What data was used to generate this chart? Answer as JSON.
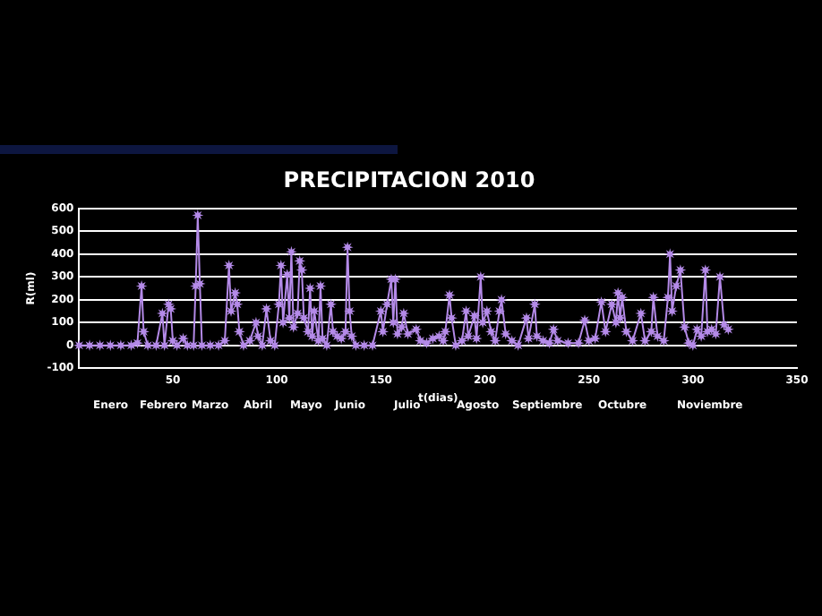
{
  "chart_data": {
    "type": "line",
    "title": "PRECIPITACION 2010",
    "xlabel": "t(dias)",
    "ylabel": "R(ml)",
    "annotations": [
      "Enero",
      "Febrero",
      "Marzo",
      "Abril",
      "Mayo",
      "Junio",
      "Julio",
      "Agosto",
      "Septiembre",
      "Octubre",
      "Noviembre"
    ],
    "xlim": [
      5,
      350
    ],
    "xticks": [
      50,
      100,
      150,
      200,
      250,
      300,
      350
    ],
    "ylim": [
      -100,
      600
    ],
    "yticks": [
      -100,
      0,
      100,
      200,
      300,
      400,
      500,
      600
    ],
    "grid": "y",
    "legend": false,
    "marker": "star",
    "line_style": "solid",
    "series": [
      {
        "color": "#b48ae8",
        "x": [
          5,
          10,
          15,
          20,
          25,
          30,
          33,
          35,
          36,
          38,
          42,
          45,
          46,
          48,
          49,
          50,
          52,
          55,
          57,
          60,
          61,
          62,
          63,
          64,
          68,
          72,
          75,
          77,
          78,
          80,
          81,
          82,
          84,
          87,
          90,
          91,
          93,
          95,
          97,
          99,
          101,
          102,
          103,
          105,
          106,
          107,
          108,
          110,
          111,
          112,
          113,
          115,
          116,
          117,
          118,
          120,
          121,
          122,
          124,
          126,
          127,
          129,
          131,
          133,
          134,
          135,
          136,
          138,
          142,
          146,
          150,
          151,
          153,
          155,
          156,
          157,
          158,
          160,
          161,
          163,
          167,
          169,
          172,
          175,
          178,
          180,
          181,
          183,
          184,
          186,
          189,
          191,
          192,
          195,
          196,
          198,
          199,
          201,
          203,
          205,
          207,
          208,
          210,
          213,
          216,
          220,
          221,
          224,
          225,
          228,
          231,
          233,
          235,
          240,
          245,
          248,
          250,
          253,
          256,
          258,
          261,
          263,
          264,
          265,
          266,
          268,
          271,
          275,
          277,
          280,
          281,
          283,
          286,
          288,
          289,
          290,
          292,
          294,
          296,
          298,
          300,
          302,
          304,
          306,
          307,
          309,
          311,
          313,
          315,
          317
        ],
        "values": [
          0,
          0,
          0,
          0,
          0,
          0,
          10,
          260,
          60,
          0,
          0,
          140,
          0,
          180,
          160,
          20,
          0,
          30,
          0,
          0,
          260,
          570,
          270,
          0,
          0,
          0,
          20,
          350,
          150,
          230,
          180,
          60,
          0,
          20,
          100,
          40,
          0,
          160,
          20,
          0,
          180,
          350,
          100,
          310,
          120,
          410,
          80,
          140,
          370,
          330,
          120,
          60,
          250,
          40,
          150,
          20,
          260,
          30,
          0,
          180,
          60,
          40,
          30,
          60,
          430,
          150,
          40,
          0,
          0,
          0,
          150,
          60,
          180,
          290,
          100,
          290,
          50,
          80,
          140,
          50,
          70,
          20,
          10,
          30,
          40,
          20,
          60,
          220,
          120,
          0,
          20,
          150,
          40,
          130,
          30,
          300,
          100,
          150,
          60,
          20,
          150,
          200,
          50,
          20,
          0,
          120,
          30,
          180,
          40,
          20,
          10,
          70,
          20,
          10,
          10,
          110,
          20,
          30,
          190,
          60,
          180,
          100,
          230,
          120,
          210,
          60,
          20,
          140,
          20,
          60,
          210,
          40,
          20,
          210,
          400,
          150,
          260,
          330,
          80,
          10,
          0,
          70,
          40,
          330,
          60,
          70,
          50,
          300,
          90,
          70
        ]
      }
    ]
  }
}
